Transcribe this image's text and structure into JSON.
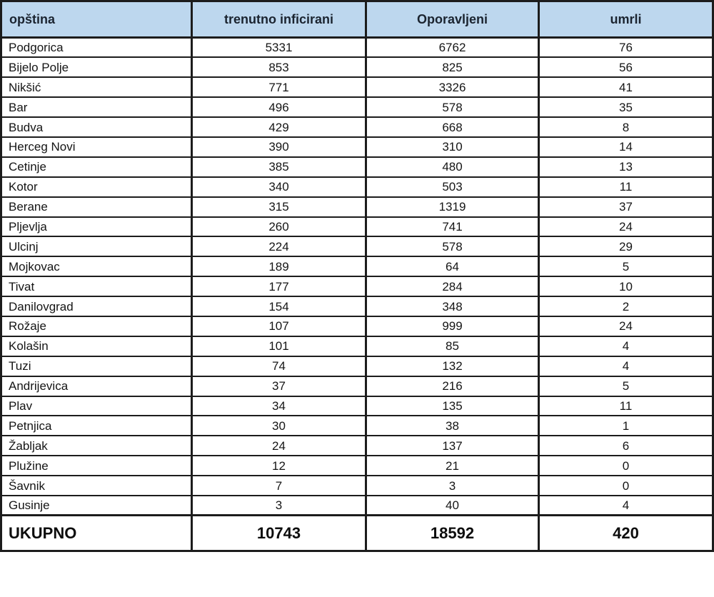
{
  "chart_data": {
    "type": "table",
    "columns": [
      "opština",
      "trenutno inficirani",
      "Oporavljeni",
      "umrli"
    ],
    "rows": [
      [
        "Podgorica",
        5331,
        6762,
        76
      ],
      [
        "Bijelo Polje",
        853,
        825,
        56
      ],
      [
        "Nikšić",
        771,
        3326,
        41
      ],
      [
        "Bar",
        496,
        578,
        35
      ],
      [
        "Budva",
        429,
        668,
        8
      ],
      [
        "Herceg Novi",
        390,
        310,
        14
      ],
      [
        "Cetinje",
        385,
        480,
        13
      ],
      [
        "Kotor",
        340,
        503,
        11
      ],
      [
        "Berane",
        315,
        1319,
        37
      ],
      [
        "Pljevlja",
        260,
        741,
        24
      ],
      [
        "Ulcinj",
        224,
        578,
        29
      ],
      [
        "Mojkovac",
        189,
        64,
        5
      ],
      [
        "Tivat",
        177,
        284,
        10
      ],
      [
        "Danilovgrad",
        154,
        348,
        2
      ],
      [
        "Rožaje",
        107,
        999,
        24
      ],
      [
        "Kolašin",
        101,
        85,
        4
      ],
      [
        "Tuzi",
        74,
        132,
        4
      ],
      [
        "Andrijevica",
        37,
        216,
        5
      ],
      [
        "Plav",
        34,
        135,
        11
      ],
      [
        "Petnjica",
        30,
        38,
        1
      ],
      [
        "Žabljak",
        24,
        137,
        6
      ],
      [
        "Plužine",
        12,
        21,
        0
      ],
      [
        "Šavnik",
        7,
        3,
        0
      ],
      [
        "Gusinje",
        3,
        40,
        4
      ]
    ],
    "total_row": [
      "UKUPNO",
      10743,
      18592,
      420
    ]
  },
  "colors": {
    "header_background": "#BDD7EE",
    "border": "#1C1C1C",
    "header_text": "#1B2430",
    "body_text": "#151515"
  }
}
